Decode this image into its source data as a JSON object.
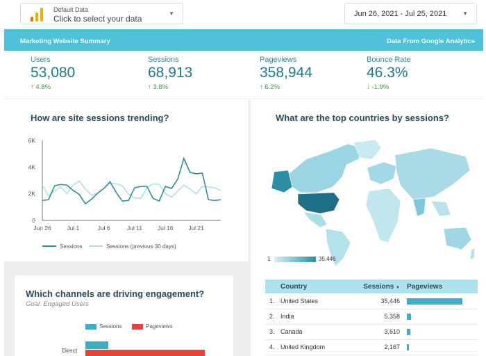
{
  "header": {
    "datasource_title": "Default Data",
    "datasource_subtitle": "Click to select your data",
    "date_range": "Jun 26, 2021 - Jul 25, 2021"
  },
  "banner": {
    "left": "Marketing Website Summary",
    "right": "Data From Google Analytics"
  },
  "kpis": [
    {
      "label": "Users",
      "value": "53,080",
      "delta": "4.8%",
      "dir": "up"
    },
    {
      "label": "Sessions",
      "value": "68,913",
      "delta": "3.8%",
      "dir": "up"
    },
    {
      "label": "Pageviews",
      "value": "358,944",
      "delta": "6.2%",
      "dir": "up"
    },
    {
      "label": "Bounce Rate",
      "value": "46.3%",
      "delta": "-1.9%",
      "dir": "down"
    }
  ],
  "icons": {
    "up": "↑",
    "down": "↓",
    "caret": "▼",
    "sort": "▼"
  },
  "colors": {
    "accent": "#4fc1d9",
    "series1": "#2d8ca0",
    "series2": "#a6dde8",
    "red": "#e84336",
    "teal": "#3bafc4"
  },
  "trend": {
    "title": "How are site sessions trending?",
    "legend_current": "Sessions",
    "legend_previous": "Sessions (previous 30 days)"
  },
  "map": {
    "title": "What are the top countries by sessions?",
    "scale_min": "1",
    "scale_max": "35,446"
  },
  "channels": {
    "title": "Which channels are driving engagement?",
    "subtitle": "Goal: Engaged Users",
    "legend_sessions": "Sessions",
    "legend_pageviews": "Pageviews",
    "first_label": "Direct"
  },
  "table": {
    "headers": {
      "country": "Country",
      "sessions": "Sessions",
      "pageviews": "Pageviews"
    },
    "rows": [
      {
        "idx": "1.",
        "country": "United States",
        "sessions": "35,446",
        "pv_frac": 1.0
      },
      {
        "idx": "2.",
        "country": "India",
        "sessions": "5,358",
        "pv_frac": 0.07
      },
      {
        "idx": "3.",
        "country": "Canada",
        "sessions": "3,610",
        "pv_frac": 0.06
      },
      {
        "idx": "4.",
        "country": "United Kingdom",
        "sessions": "2,167",
        "pv_frac": 0.02
      }
    ]
  },
  "chart_data": [
    {
      "type": "line",
      "title": "How are site sessions trending?",
      "x": [
        "Jun 26",
        "Jun 27",
        "Jun 28",
        "Jun 29",
        "Jun 30",
        "Jul 1",
        "Jul 2",
        "Jul 3",
        "Jul 4",
        "Jul 5",
        "Jul 6",
        "Jul 7",
        "Jul 8",
        "Jul 9",
        "Jul 10",
        "Jul 11",
        "Jul 12",
        "Jul 13",
        "Jul 14",
        "Jul 15",
        "Jul 16",
        "Jul 17",
        "Jul 18",
        "Jul 19",
        "Jul 20",
        "Jul 21",
        "Jul 22",
        "Jul 23",
        "Jul 24",
        "Jul 25"
      ],
      "xticks": [
        "Jun 26",
        "Jul 1",
        "Jul 6",
        "Jul 11",
        "Jul 16",
        "Jul 21"
      ],
      "yticks": [
        "0",
        "2K",
        "4K",
        "6K"
      ],
      "ylim": [
        0,
        6000
      ],
      "series": [
        {
          "name": "Sessions",
          "values": [
            1500,
            1550,
            2600,
            2700,
            2650,
            2250,
            1950,
            1250,
            1600,
            2050,
            2400,
            2900,
            2100,
            1450,
            1500,
            2450,
            2550,
            2550,
            1650,
            1450,
            2550,
            2400,
            3100,
            4650,
            3600,
            3500,
            3550,
            1550,
            1500,
            1550
          ]
        },
        {
          "name": "Sessions (previous 30 days)",
          "values": [
            2650,
            1850,
            2200,
            2500,
            2000,
            2650,
            2950,
            2350,
            1900,
            2050,
            2400,
            2800,
            2750,
            2600,
            1950,
            1700,
            1650,
            2450,
            2750,
            2700,
            2000,
            1750,
            2200,
            2650,
            2350,
            2000,
            2550,
            2500,
            2450,
            2250
          ]
        }
      ]
    },
    {
      "type": "table",
      "columns": [
        "Country",
        "Sessions",
        "Pageviews"
      ],
      "rows": [
        [
          "United States",
          35446
        ],
        [
          "India",
          5358
        ],
        [
          "Canada",
          3610
        ],
        [
          "United Kingdom",
          2167
        ]
      ]
    },
    {
      "type": "bar",
      "title": "Which channels are driving engagement?",
      "categories": [
        "Direct"
      ],
      "series": [
        {
          "name": "Sessions",
          "values": [
            0.19
          ]
        },
        {
          "name": "Pageviews",
          "values": [
            1.0
          ]
        }
      ]
    }
  ]
}
